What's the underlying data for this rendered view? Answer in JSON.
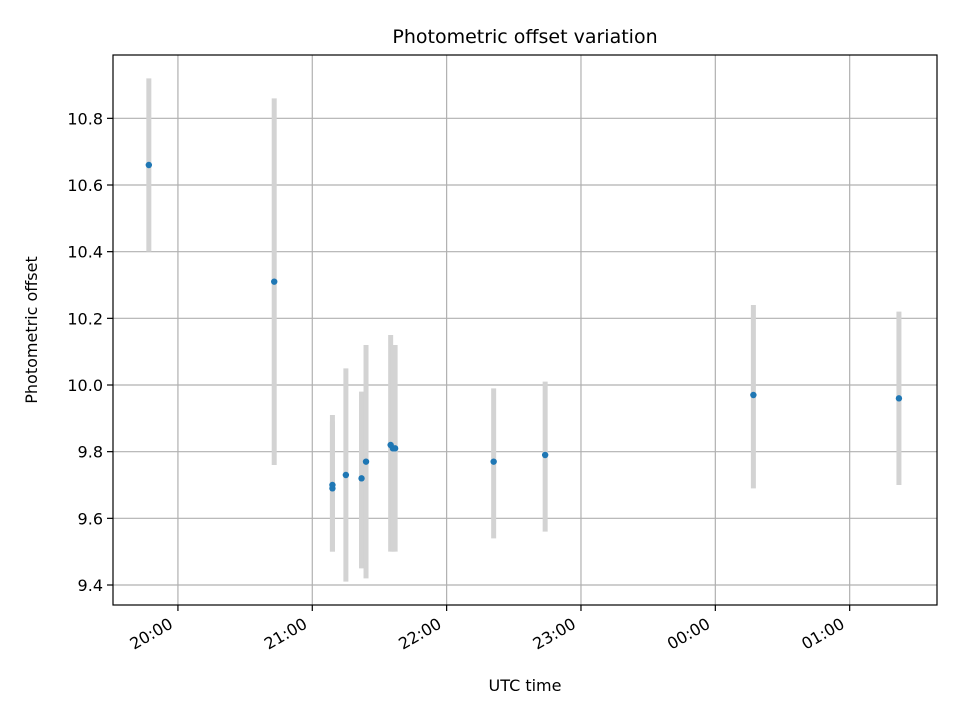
{
  "chart_data": {
    "type": "scatter",
    "title": "Photometric offset variation",
    "xlabel": "UTC time",
    "ylabel": "Photometric offset",
    "x_unit": "time (HH:MM, UTC, crossing midnight)",
    "xlim": [
      "19:31",
      "01:39"
    ],
    "ylim": [
      9.34,
      10.99
    ],
    "grid": true,
    "point_color": "#1f77b4",
    "errorbar_color": "#d3d3d3",
    "x_ticks": [
      "20:00",
      "21:00",
      "22:00",
      "23:00",
      "00:00",
      "01:00"
    ],
    "y_ticks": [
      "9.4",
      "9.6",
      "9.8",
      "10.0",
      "10.2",
      "10.4",
      "10.6",
      "10.8"
    ],
    "points": [
      {
        "x": "19:47",
        "y": 10.66,
        "ylow": 10.4,
        "yhigh": 10.92
      },
      {
        "x": "20:43",
        "y": 10.31,
        "ylow": 9.76,
        "yhigh": 10.86
      },
      {
        "x": "21:09",
        "y": 9.7,
        "ylow": 9.5,
        "yhigh": 9.91
      },
      {
        "x": "21:09",
        "y": 9.69,
        "ylow": 9.5,
        "yhigh": 9.89
      },
      {
        "x": "21:15",
        "y": 9.73,
        "ylow": 9.41,
        "yhigh": 10.05
      },
      {
        "x": "21:22",
        "y": 9.72,
        "ylow": 9.45,
        "yhigh": 9.98
      },
      {
        "x": "21:24",
        "y": 9.77,
        "ylow": 9.42,
        "yhigh": 10.12
      },
      {
        "x": "21:35",
        "y": 9.82,
        "ylow": 9.5,
        "yhigh": 10.15
      },
      {
        "x": "21:36",
        "y": 9.81,
        "ylow": 9.5,
        "yhigh": 10.12
      },
      {
        "x": "21:37",
        "y": 9.81,
        "ylow": 9.5,
        "yhigh": 10.12
      },
      {
        "x": "22:21",
        "y": 9.77,
        "ylow": 9.54,
        "yhigh": 9.99
      },
      {
        "x": "22:44",
        "y": 9.79,
        "ylow": 9.56,
        "yhigh": 10.01
      },
      {
        "x": "00:17",
        "y": 9.97,
        "ylow": 9.69,
        "yhigh": 10.24
      },
      {
        "x": "01:22",
        "y": 9.96,
        "ylow": 9.7,
        "yhigh": 10.22
      }
    ]
  }
}
